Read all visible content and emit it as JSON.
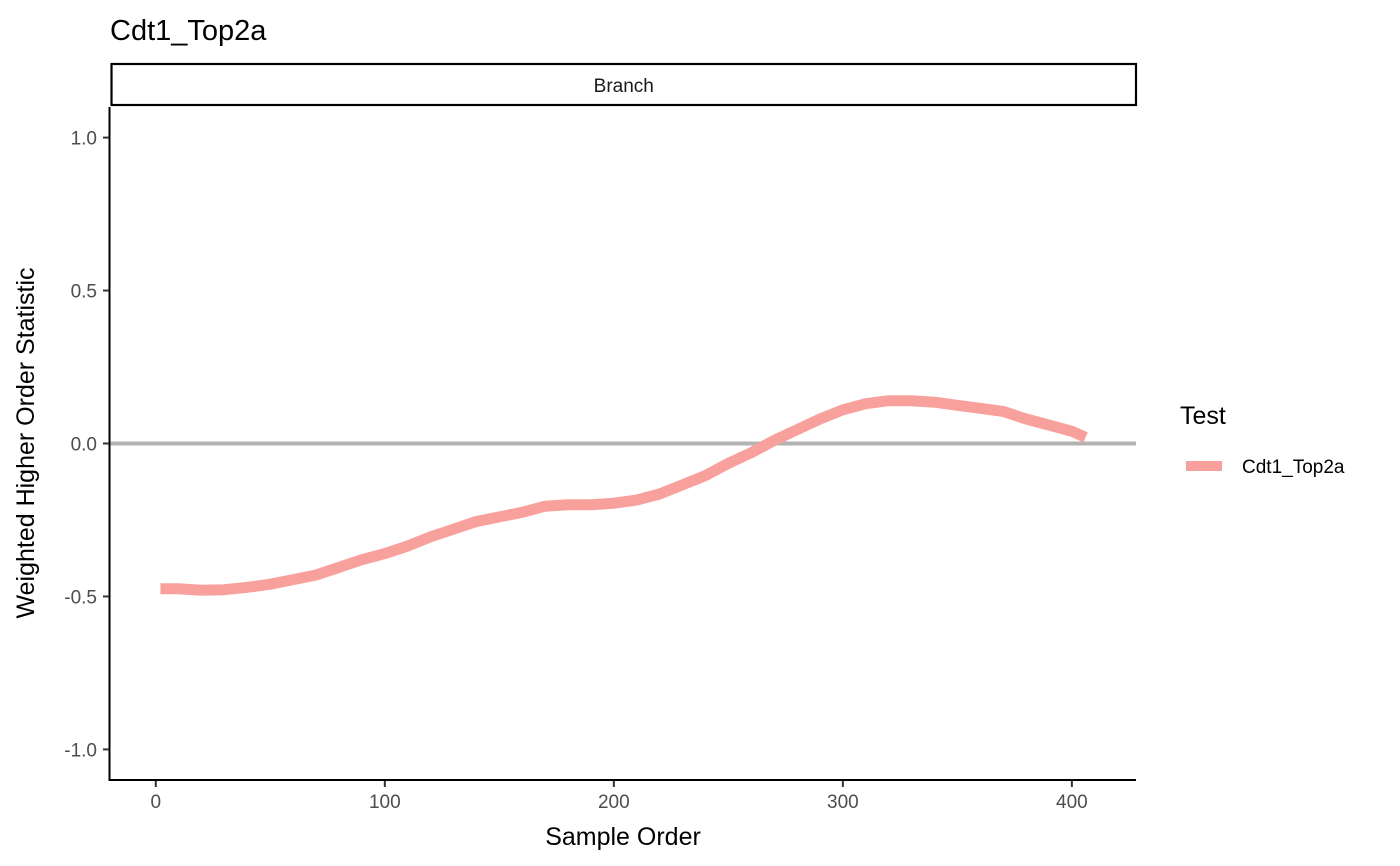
{
  "chart_data": {
    "type": "line",
    "title": "Cdt1_Top2a",
    "facet_label": "Branch",
    "xlabel": "Sample Order",
    "ylabel": "Weighted Higher Order Statistic",
    "xlim": [
      -20,
      428
    ],
    "ylim": [
      -1.1,
      1.1
    ],
    "x_ticks": [
      0,
      100,
      200,
      300,
      400
    ],
    "x_tick_labels": [
      "0",
      "100",
      "200",
      "300",
      "400"
    ],
    "y_ticks": [
      -1.0,
      -0.5,
      0.0,
      0.5,
      1.0
    ],
    "y_tick_labels": [
      "-1.0",
      "-0.5",
      "0.0",
      "0.5",
      "1.0"
    ],
    "reference_line": {
      "y": 0,
      "color": "#b3b3b3"
    },
    "grid": false,
    "legend": {
      "title": "Test",
      "placement": "right"
    },
    "series": [
      {
        "name": "Cdt1_Top2a",
        "color": "#f8a19c",
        "x": [
          2,
          10,
          20,
          30,
          40,
          50,
          60,
          70,
          80,
          90,
          100,
          110,
          120,
          130,
          140,
          150,
          160,
          170,
          180,
          190,
          200,
          210,
          220,
          230,
          240,
          250,
          260,
          270,
          280,
          290,
          300,
          310,
          320,
          330,
          340,
          350,
          360,
          370,
          380,
          390,
          400,
          406
        ],
        "y": [
          -0.475,
          -0.475,
          -0.48,
          -0.478,
          -0.47,
          -0.46,
          -0.445,
          -0.43,
          -0.405,
          -0.38,
          -0.36,
          -0.335,
          -0.305,
          -0.28,
          -0.255,
          -0.24,
          -0.225,
          -0.205,
          -0.2,
          -0.2,
          -0.195,
          -0.185,
          -0.165,
          -0.135,
          -0.105,
          -0.065,
          -0.03,
          0.01,
          0.045,
          0.08,
          0.11,
          0.13,
          0.14,
          0.14,
          0.135,
          0.125,
          0.115,
          0.105,
          0.08,
          0.06,
          0.04,
          0.02
        ]
      }
    ]
  }
}
